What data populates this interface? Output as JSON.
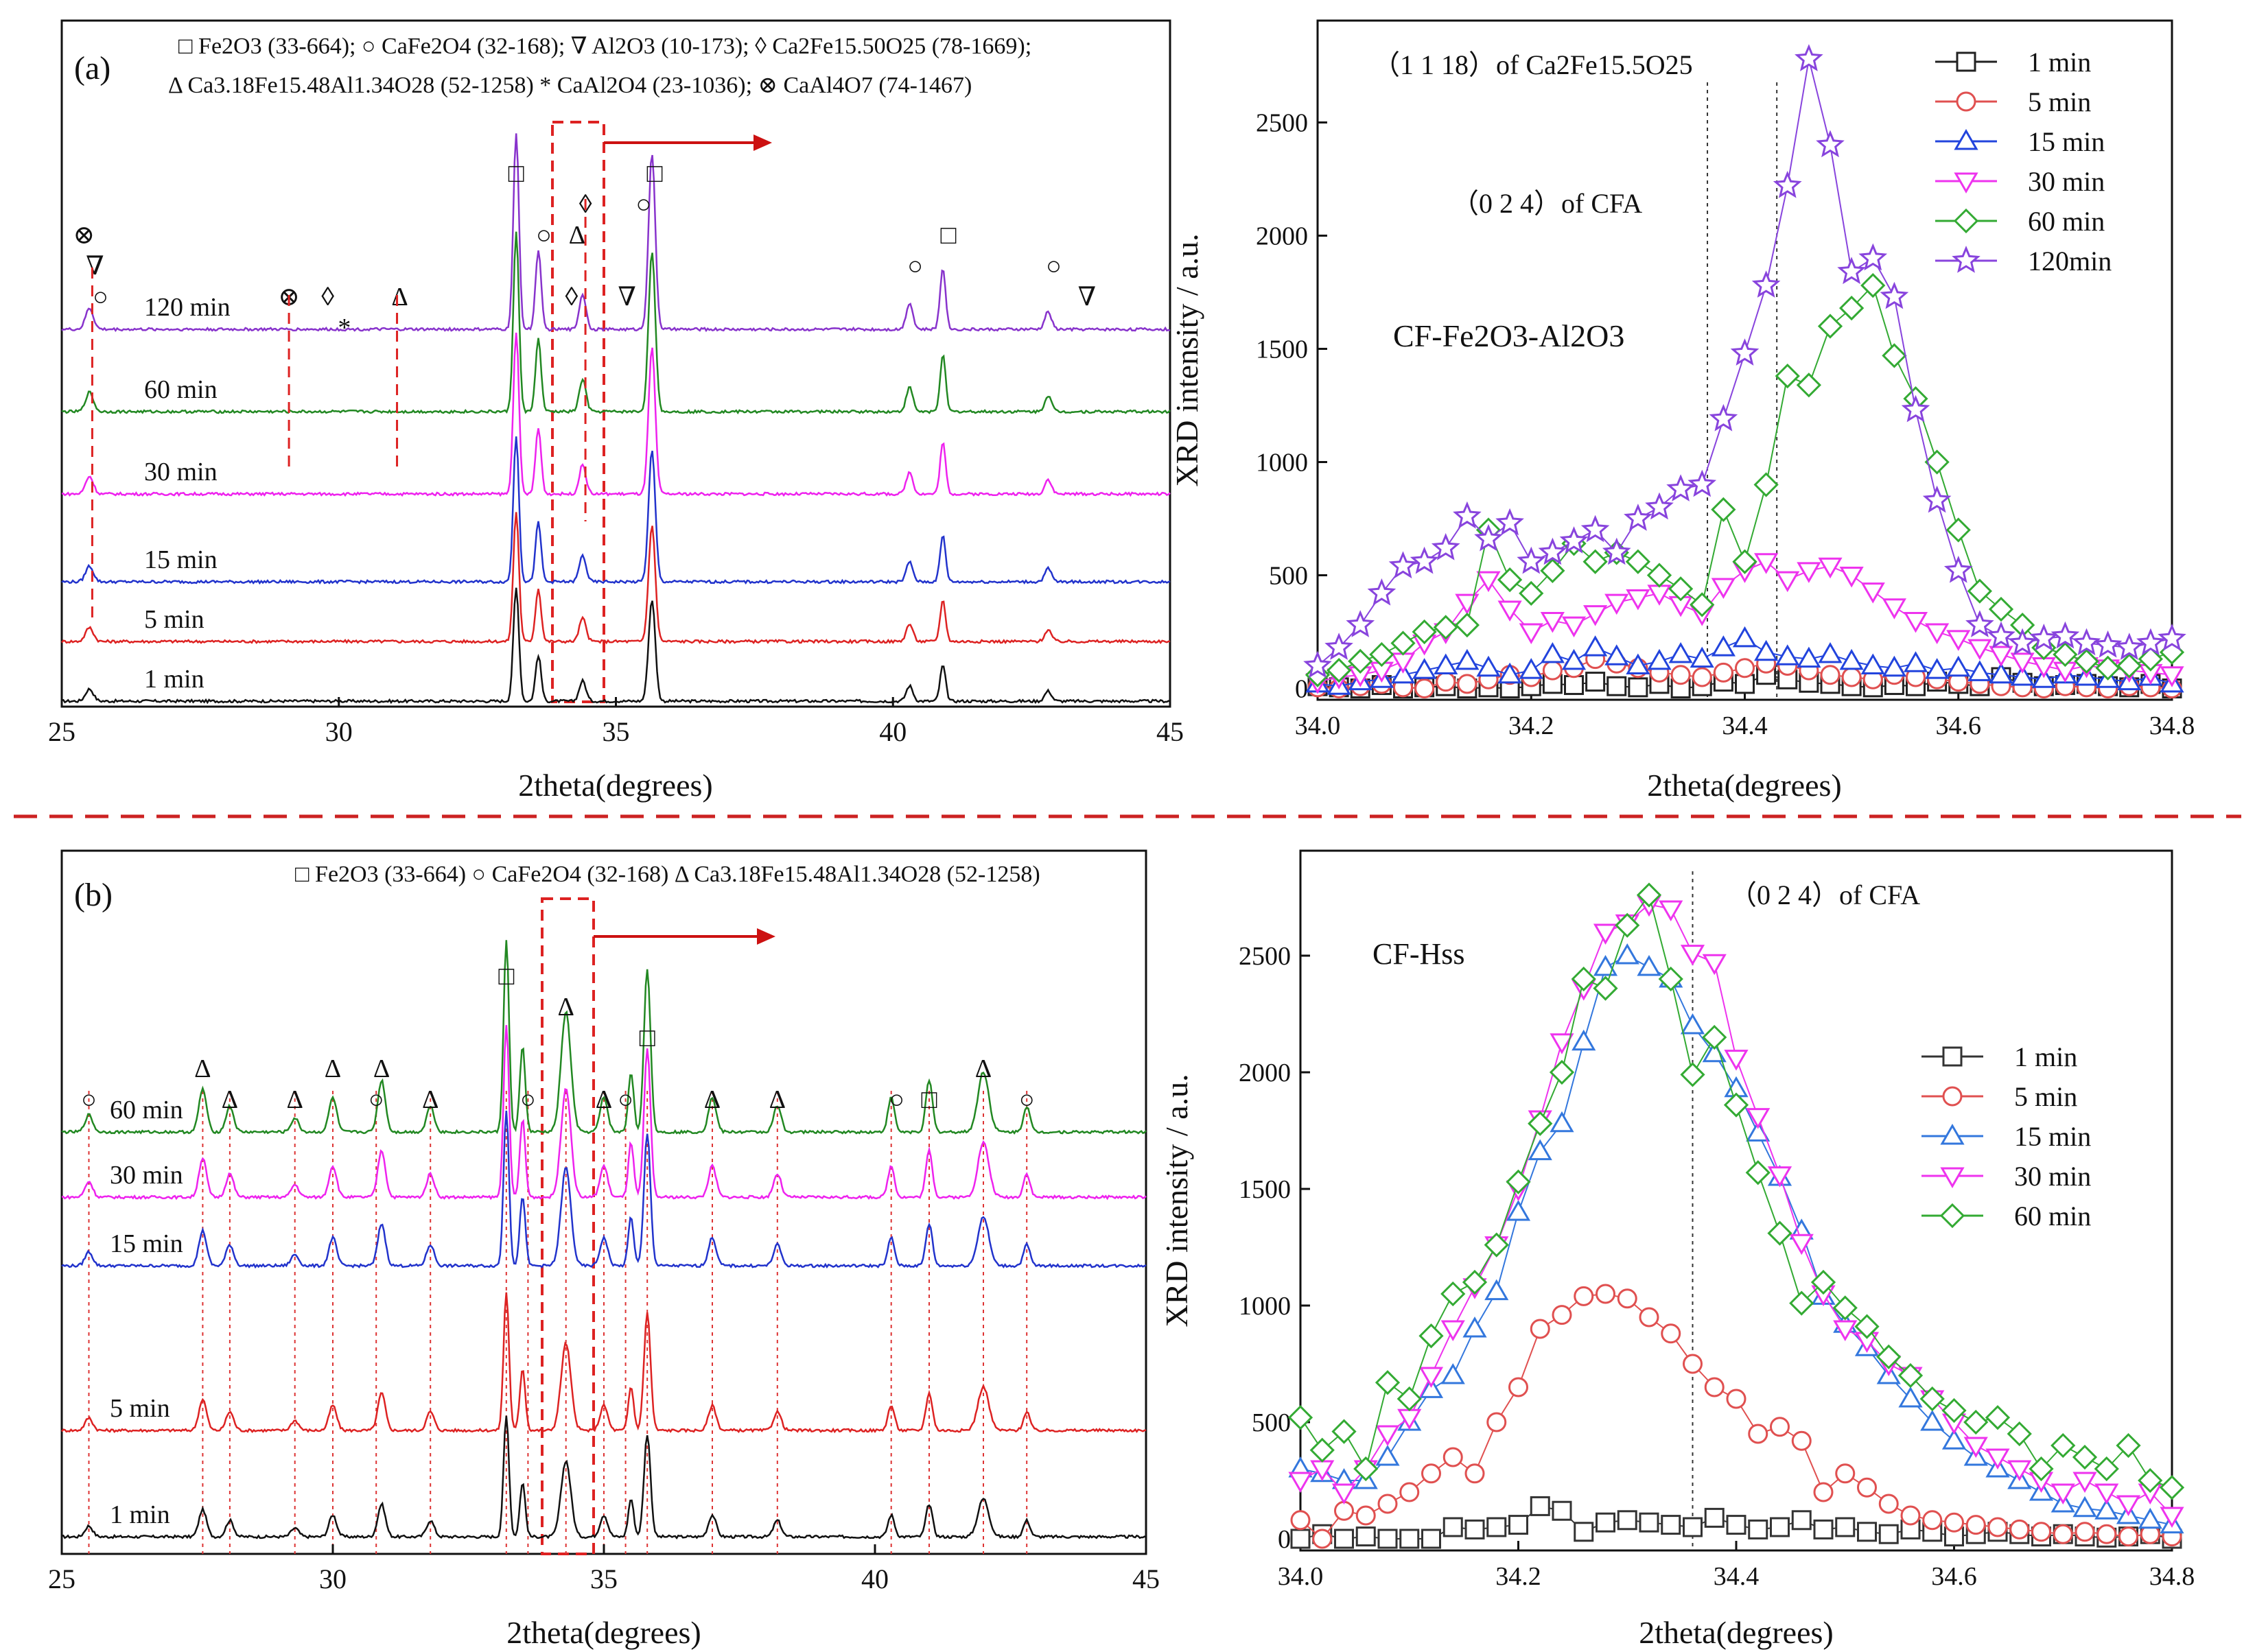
{
  "figure": {
    "separator_color": "#cc2222"
  },
  "chart_data": [
    {
      "id": "a_left",
      "panel_label": "(a)",
      "type": "line",
      "title": "",
      "xlabel": "2theta(degrees)",
      "ylabel": "",
      "xlim": [
        25,
        45
      ],
      "xticks": [
        25,
        30,
        35,
        40,
        45
      ],
      "legend_lines": [
        "□  Fe2O3 (33-664); ○ CaFe2O4 (32-168); ∇  Al2O3 (10-173); ◊ Ca2Fe15.50O25 (78-1669);",
        "Δ  Ca3.18Fe15.48Al1.34O28 (52-1258)  *  CaAl2O4 (23-1036);  ⊗  CaAl4O7 (74-1467)"
      ],
      "series": [
        {
          "name": "1 min",
          "color": "#111111"
        },
        {
          "name": "5 min",
          "color": "#dd2222"
        },
        {
          "name": "15 min",
          "color": "#2233cc"
        },
        {
          "name": "30 min",
          "color": "#ee22ee"
        },
        {
          "name": "60 min",
          "color": "#228822"
        },
        {
          "name": "120 min",
          "color": "#8833cc"
        }
      ],
      "peaks": [
        {
          "pos": 25.5,
          "h": 0.12,
          "w": 0.07
        },
        {
          "pos": 33.2,
          "h": 1.0,
          "w": 0.05
        },
        {
          "pos": 33.6,
          "h": 0.45,
          "w": 0.05
        },
        {
          "pos": 34.4,
          "h": 0.2,
          "w": 0.06
        },
        {
          "pos": 35.65,
          "h": 0.9,
          "w": 0.06
        },
        {
          "pos": 40.3,
          "h": 0.15,
          "w": 0.06
        },
        {
          "pos": 40.9,
          "h": 0.35,
          "w": 0.05
        },
        {
          "pos": 42.8,
          "h": 0.1,
          "w": 0.06
        }
      ],
      "markers": [
        {
          "sym": "⊗",
          "x": 25.4,
          "level": 2
        },
        {
          "sym": "∇",
          "x": 25.6,
          "level": 1
        },
        {
          "sym": "○",
          "x": 25.7,
          "level": 0
        },
        {
          "sym": "⊗",
          "x": 29.1,
          "level": 0
        },
        {
          "sym": "◊",
          "x": 29.8,
          "level": 0
        },
        {
          "sym": "*",
          "x": 30.1,
          "level": -1
        },
        {
          "sym": "Δ",
          "x": 31.1,
          "level": 0
        },
        {
          "sym": "□",
          "x": 33.2,
          "level": 4
        },
        {
          "sym": "○",
          "x": 33.7,
          "level": 2
        },
        {
          "sym": "◊",
          "x": 34.2,
          "level": 0
        },
        {
          "sym": "Δ",
          "x": 34.3,
          "level": 2
        },
        {
          "sym": "◊",
          "x": 34.45,
          "level": 3
        },
        {
          "sym": "∇",
          "x": 35.2,
          "level": 0
        },
        {
          "sym": "○",
          "x": 35.5,
          "level": 3
        },
        {
          "sym": "□",
          "x": 35.7,
          "level": 4
        },
        {
          "sym": "○",
          "x": 40.4,
          "level": 1
        },
        {
          "sym": "□",
          "x": 41.0,
          "level": 2
        },
        {
          "sym": "○",
          "x": 42.9,
          "level": 1
        },
        {
          "sym": "∇",
          "x": 43.5,
          "level": 0
        }
      ]
    },
    {
      "id": "a_right",
      "type": "line",
      "title": "CF-Fe2O3-Al2O3",
      "xlabel": "2theta(degrees)",
      "ylabel": "XRD intensity / a.u.",
      "xlim": [
        34.0,
        34.8
      ],
      "ylim": [
        -50,
        2950
      ],
      "xticks": [
        34.0,
        34.2,
        34.4,
        34.6,
        34.8
      ],
      "yticks": [
        0,
        500,
        1000,
        1500,
        2000,
        2500
      ],
      "annotations": [
        {
          "text": "（1 1 18）of Ca2Fe15.5O25"
        },
        {
          "text": "（0 2 4）of CFA"
        }
      ],
      "vlines": [
        34.365,
        34.43
      ],
      "x": [
        34.0,
        34.02,
        34.04,
        34.06,
        34.08,
        34.1,
        34.12,
        34.14,
        34.16,
        34.18,
        34.2,
        34.22,
        34.24,
        34.26,
        34.28,
        34.3,
        34.32,
        34.34,
        34.36,
        34.38,
        34.4,
        34.42,
        34.44,
        34.46,
        34.48,
        34.5,
        34.52,
        34.54,
        34.56,
        34.58,
        34.6,
        34.62,
        34.64,
        34.66,
        34.68,
        34.7,
        34.72,
        34.74,
        34.76,
        34.78,
        34.8
      ],
      "series": [
        {
          "name": "1 min",
          "marker": "square",
          "color": "#222222",
          "values": [
            10,
            5,
            0,
            15,
            0,
            5,
            10,
            0,
            5,
            0,
            10,
            20,
            15,
            30,
            10,
            5,
            20,
            0,
            10,
            30,
            20,
            60,
            40,
            25,
            20,
            10,
            5,
            15,
            10,
            30,
            20,
            10,
            50,
            25,
            10,
            15,
            20,
            10,
            5,
            20,
            0
          ]
        },
        {
          "name": "5 min",
          "marker": "circle",
          "color": "#e05050",
          "values": [
            5,
            0,
            10,
            20,
            5,
            0,
            30,
            20,
            40,
            60,
            50,
            80,
            90,
            130,
            110,
            90,
            70,
            60,
            50,
            70,
            90,
            110,
            100,
            80,
            60,
            50,
            40,
            60,
            50,
            40,
            30,
            20,
            10,
            5,
            0,
            10,
            5,
            0,
            10,
            5,
            0
          ]
        },
        {
          "name": "15 min",
          "marker": "triangle-up",
          "color": "#2244dd",
          "values": [
            20,
            10,
            30,
            40,
            60,
            80,
            100,
            120,
            90,
            60,
            80,
            150,
            120,
            180,
            140,
            100,
            120,
            150,
            130,
            180,
            220,
            160,
            140,
            130,
            150,
            120,
            100,
            90,
            110,
            80,
            90,
            70,
            60,
            50,
            40,
            60,
            50,
            40,
            30,
            50,
            20
          ]
        },
        {
          "name": "30 min",
          "marker": "triangle-down",
          "color": "#ee33ee",
          "values": [
            30,
            50,
            60,
            80,
            120,
            200,
            250,
            380,
            480,
            350,
            250,
            300,
            280,
            330,
            380,
            400,
            420,
            370,
            330,
            450,
            520,
            560,
            480,
            520,
            540,
            500,
            430,
            360,
            300,
            250,
            220,
            180,
            150,
            120,
            100,
            80,
            100,
            90,
            80,
            70,
            60
          ]
        },
        {
          "name": "60 min",
          "marker": "diamond",
          "color": "#33aa33",
          "values": [
            60,
            80,
            120,
            150,
            200,
            250,
            270,
            280,
            700,
            480,
            420,
            520,
            640,
            560,
            600,
            560,
            500,
            440,
            370,
            790,
            560,
            900,
            1380,
            1340,
            1600,
            1680,
            1780,
            1470,
            1280,
            1000,
            700,
            430,
            350,
            280,
            180,
            150,
            120,
            90,
            100,
            130,
            160
          ]
        },
        {
          "name": "120min",
          "marker": "star",
          "color": "#8844dd",
          "values": [
            100,
            180,
            280,
            420,
            540,
            560,
            620,
            760,
            660,
            730,
            560,
            600,
            650,
            700,
            600,
            750,
            800,
            880,
            900,
            1190,
            1480,
            1780,
            2220,
            2780,
            2400,
            1840,
            1900,
            1730,
            1230,
            830,
            520,
            280,
            230,
            200,
            220,
            230,
            200,
            190,
            180,
            200,
            220
          ]
        }
      ]
    },
    {
      "id": "b_left",
      "panel_label": "(b)",
      "type": "line",
      "title": "",
      "xlabel": "2theta(degrees)",
      "ylabel": "",
      "xlim": [
        25,
        45
      ],
      "xticks": [
        25,
        30,
        35,
        40,
        45
      ],
      "legend_lines": [
        "□  Fe2O3 (33-664)   ○  CaFe2O4 (32-168)   Δ   Ca3.18Fe15.48Al1.34O28 (52-1258)"
      ],
      "series": [
        {
          "name": "1 min",
          "color": "#111111"
        },
        {
          "name": "5 min",
          "color": "#dd2222"
        },
        {
          "name": "15 min",
          "color": "#2233cc"
        },
        {
          "name": "30 min",
          "color": "#ee22ee"
        },
        {
          "name": "60 min",
          "color": "#228822"
        }
      ],
      "peaks": [
        {
          "pos": 25.5,
          "h": 0.1,
          "w": 0.07
        },
        {
          "pos": 27.6,
          "h": 0.25,
          "w": 0.07
        },
        {
          "pos": 28.1,
          "h": 0.15,
          "w": 0.07
        },
        {
          "pos": 29.3,
          "h": 0.08,
          "w": 0.07
        },
        {
          "pos": 30.0,
          "h": 0.2,
          "w": 0.07
        },
        {
          "pos": 30.9,
          "h": 0.3,
          "w": 0.07
        },
        {
          "pos": 31.8,
          "h": 0.15,
          "w": 0.07
        },
        {
          "pos": 33.2,
          "h": 1.0,
          "w": 0.05
        },
        {
          "pos": 33.5,
          "h": 0.5,
          "w": 0.05
        },
        {
          "pos": 34.3,
          "h": 0.7,
          "w": 0.09
        },
        {
          "pos": 35.0,
          "h": 0.2,
          "w": 0.07
        },
        {
          "pos": 35.5,
          "h": 0.35,
          "w": 0.05
        },
        {
          "pos": 35.8,
          "h": 0.85,
          "w": 0.06
        },
        {
          "pos": 37.0,
          "h": 0.2,
          "w": 0.07
        },
        {
          "pos": 38.2,
          "h": 0.15,
          "w": 0.07
        },
        {
          "pos": 40.3,
          "h": 0.2,
          "w": 0.06
        },
        {
          "pos": 41.0,
          "h": 0.3,
          "w": 0.06
        },
        {
          "pos": 42.0,
          "h": 0.35,
          "w": 0.1
        },
        {
          "pos": 42.8,
          "h": 0.15,
          "w": 0.06
        }
      ],
      "markers": [
        {
          "sym": "○",
          "x": 25.5,
          "level": 0
        },
        {
          "sym": "Δ",
          "x": 27.6,
          "level": 1
        },
        {
          "sym": "Δ",
          "x": 28.1,
          "level": 0
        },
        {
          "sym": "Δ",
          "x": 29.3,
          "level": 0
        },
        {
          "sym": "Δ",
          "x": 30.0,
          "level": 1
        },
        {
          "sym": "○",
          "x": 30.8,
          "level": 0
        },
        {
          "sym": "Δ",
          "x": 30.9,
          "level": 1
        },
        {
          "sym": "Δ",
          "x": 31.8,
          "level": 0
        },
        {
          "sym": "□",
          "x": 33.2,
          "level": 4
        },
        {
          "sym": "○",
          "x": 33.6,
          "level": 0
        },
        {
          "sym": "Δ",
          "x": 34.3,
          "level": 3
        },
        {
          "sym": "Δ",
          "x": 35.0,
          "level": 0
        },
        {
          "sym": "○",
          "x": 35.4,
          "level": 0
        },
        {
          "sym": "□",
          "x": 35.8,
          "level": 2
        },
        {
          "sym": "Δ",
          "x": 37.0,
          "level": 0
        },
        {
          "sym": "Δ",
          "x": 38.2,
          "level": 0
        },
        {
          "sym": "○",
          "x": 40.4,
          "level": 0
        },
        {
          "sym": "□",
          "x": 41.0,
          "level": 0
        },
        {
          "sym": "Δ",
          "x": 42.0,
          "level": 1
        },
        {
          "sym": "○",
          "x": 42.8,
          "level": 0
        }
      ],
      "ref_lines": [
        25.5,
        27.6,
        28.1,
        29.3,
        30.0,
        30.8,
        31.8,
        33.2,
        33.6,
        34.3,
        35.0,
        35.4,
        35.8,
        37.0,
        38.2,
        40.3,
        41.0,
        42.0,
        42.8
      ]
    },
    {
      "id": "b_right",
      "type": "line",
      "title": "CF-Hss",
      "xlabel": "2theta(degrees)",
      "ylabel": "XRD intensity / a.u.",
      "xlim": [
        34.0,
        34.8
      ],
      "ylim": [
        -50,
        2950
      ],
      "xticks": [
        34.0,
        34.2,
        34.4,
        34.6,
        34.8
      ],
      "yticks": [
        0,
        500,
        1000,
        1500,
        2000,
        2500
      ],
      "annotations": [
        {
          "text": "（0 2 4）of CFA"
        }
      ],
      "vlines": [
        34.36
      ],
      "x": [
        34.0,
        34.02,
        34.04,
        34.06,
        34.08,
        34.1,
        34.12,
        34.14,
        34.16,
        34.18,
        34.2,
        34.22,
        34.24,
        34.26,
        34.28,
        34.3,
        34.32,
        34.34,
        34.36,
        34.38,
        34.4,
        34.42,
        34.44,
        34.46,
        34.48,
        34.5,
        34.52,
        34.54,
        34.56,
        34.58,
        34.6,
        34.62,
        34.64,
        34.66,
        34.68,
        34.7,
        34.72,
        34.74,
        34.76,
        34.78,
        34.8
      ],
      "series": [
        {
          "name": "1 min",
          "marker": "square",
          "color": "#333333",
          "values": [
            0,
            20,
            0,
            10,
            0,
            0,
            0,
            50,
            40,
            50,
            60,
            140,
            120,
            30,
            70,
            80,
            70,
            60,
            50,
            90,
            60,
            40,
            50,
            80,
            40,
            50,
            30,
            20,
            40,
            30,
            10,
            20,
            30,
            20,
            10,
            20,
            10,
            5,
            10,
            20,
            0
          ]
        },
        {
          "name": "5 min",
          "marker": "circle",
          "color": "#e05050",
          "values": [
            80,
            0,
            120,
            100,
            150,
            200,
            280,
            350,
            280,
            500,
            650,
            900,
            960,
            1040,
            1050,
            1030,
            950,
            880,
            750,
            650,
            600,
            450,
            480,
            420,
            200,
            280,
            220,
            150,
            100,
            80,
            70,
            60,
            50,
            40,
            30,
            20,
            30,
            20,
            10,
            20,
            10
          ]
        },
        {
          "name": "15 min",
          "marker": "triangle-up",
          "color": "#3377dd",
          "values": [
            300,
            280,
            250,
            250,
            350,
            500,
            640,
            700,
            900,
            1060,
            1400,
            1660,
            1780,
            2130,
            2450,
            2500,
            2450,
            2400,
            2200,
            2080,
            1930,
            1740,
            1550,
            1320,
            1040,
            920,
            820,
            700,
            600,
            500,
            420,
            350,
            300,
            250,
            200,
            150,
            130,
            120,
            100,
            80,
            60
          ]
        },
        {
          "name": "30 min",
          "marker": "triangle-down",
          "color": "#ee33ee",
          "values": [
            250,
            300,
            200,
            300,
            450,
            520,
            700,
            900,
            1080,
            1260,
            1500,
            1800,
            2130,
            2360,
            2600,
            2640,
            2720,
            2700,
            2510,
            2470,
            2060,
            1810,
            1560,
            1270,
            1050,
            900,
            850,
            750,
            700,
            600,
            500,
            400,
            350,
            300,
            250,
            200,
            250,
            200,
            150,
            200,
            100
          ]
        },
        {
          "name": "60 min",
          "marker": "diamond",
          "color": "#33aa33",
          "values": [
            520,
            380,
            460,
            300,
            670,
            600,
            870,
            1050,
            1100,
            1260,
            1530,
            1780,
            2000,
            2400,
            2360,
            2630,
            2760,
            2400,
            1990,
            2150,
            1860,
            1570,
            1310,
            1010,
            1100,
            990,
            910,
            780,
            700,
            600,
            550,
            500,
            520,
            450,
            300,
            400,
            350,
            300,
            400,
            250,
            220
          ]
        }
      ]
    }
  ]
}
